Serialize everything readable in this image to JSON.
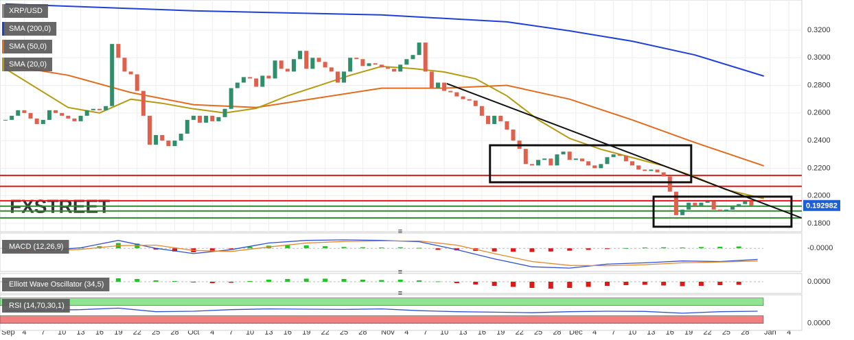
{
  "chart_data": [
    {
      "type": "candlestick",
      "title": "XRP/USD",
      "watermark": "FXSTREET",
      "grid": true,
      "up_color": "#2f8f6b",
      "down_color": "#e0604c",
      "ylim": [
        0.175,
        0.34
      ],
      "yticks": [
        {
          "value": 0.32,
          "label": "0.3200"
        },
        {
          "value": 0.3,
          "label": "0.3000"
        },
        {
          "value": 0.28,
          "label": "0.2800"
        },
        {
          "value": 0.26,
          "label": "0.2600"
        },
        {
          "value": 0.24,
          "label": "0.2400"
        },
        {
          "value": 0.22,
          "label": "0.2200"
        },
        {
          "value": 0.2,
          "label": "0.2000"
        },
        {
          "value": 0.18,
          "label": "0.1800"
        }
      ],
      "xlim": [
        -1,
        127
      ],
      "xticks": [
        {
          "value": 0,
          "label": "Sep"
        },
        {
          "value": 3,
          "label": "4"
        },
        {
          "value": 6,
          "label": "7"
        },
        {
          "value": 9,
          "label": "10"
        },
        {
          "value": 12,
          "label": "13"
        },
        {
          "value": 15,
          "label": "16"
        },
        {
          "value": 18,
          "label": "19"
        },
        {
          "value": 21,
          "label": "22"
        },
        {
          "value": 24,
          "label": "25"
        },
        {
          "value": 27,
          "label": "28"
        },
        {
          "value": 30,
          "label": "Oct"
        },
        {
          "value": 33,
          "label": "4"
        },
        {
          "value": 36,
          "label": "7"
        },
        {
          "value": 39,
          "label": "10"
        },
        {
          "value": 42,
          "label": "13"
        },
        {
          "value": 45,
          "label": "16"
        },
        {
          "value": 48,
          "label": "19"
        },
        {
          "value": 51,
          "label": "22"
        },
        {
          "value": 54,
          "label": "25"
        },
        {
          "value": 57,
          "label": "28"
        },
        {
          "value": 61,
          "label": "Nov"
        },
        {
          "value": 64,
          "label": "4"
        },
        {
          "value": 67,
          "label": "7"
        },
        {
          "value": 70,
          "label": "10"
        },
        {
          "value": 73,
          "label": "13"
        },
        {
          "value": 76,
          "label": "16"
        },
        {
          "value": 79,
          "label": "19"
        },
        {
          "value": 82,
          "label": "22"
        },
        {
          "value": 85,
          "label": "25"
        },
        {
          "value": 88,
          "label": "28"
        },
        {
          "value": 91,
          "label": "Dec"
        },
        {
          "value": 94,
          "label": "4"
        },
        {
          "value": 97,
          "label": "7"
        },
        {
          "value": 100,
          "label": "10"
        },
        {
          "value": 103,
          "label": "13"
        },
        {
          "value": 106,
          "label": "16"
        },
        {
          "value": 109,
          "label": "19"
        },
        {
          "value": 112,
          "label": "22"
        },
        {
          "value": 115,
          "label": "25"
        },
        {
          "value": 118,
          "label": "28"
        },
        {
          "value": 122,
          "label": "Jan"
        },
        {
          "value": 125,
          "label": "4"
        }
      ],
      "values": [
        0.255,
        0.258,
        0.262,
        0.26,
        0.256,
        0.252,
        0.255,
        0.262,
        0.26,
        0.258,
        0.256,
        0.254,
        0.258,
        0.262,
        0.263,
        0.262,
        0.265,
        0.31,
        0.3,
        0.29,
        0.288,
        0.276,
        0.258,
        0.237,
        0.244,
        0.24,
        0.236,
        0.24,
        0.245,
        0.255,
        0.258,
        0.253,
        0.258,
        0.254,
        0.257,
        0.263,
        0.278,
        0.282,
        0.286,
        0.285,
        0.279,
        0.287,
        0.285,
        0.298,
        0.292,
        0.29,
        0.299,
        0.305,
        0.292,
        0.3,
        0.297,
        0.293,
        0.29,
        0.282,
        0.29,
        0.3,
        0.299,
        0.294,
        0.296,
        0.295,
        0.293,
        0.292,
        0.29,
        0.295,
        0.299,
        0.302,
        0.311,
        0.29,
        0.278,
        0.282,
        0.276,
        0.275,
        0.272,
        0.27,
        0.269,
        0.265,
        0.258,
        0.252,
        0.258,
        0.254,
        0.248,
        0.24,
        0.234,
        0.223,
        0.222,
        0.226,
        0.227,
        0.222,
        0.23,
        0.232,
        0.226,
        0.227,
        0.225,
        0.222,
        0.22,
        0.223,
        0.228,
        0.23,
        0.229,
        0.225,
        0.222,
        0.219,
        0.218,
        0.219,
        0.217,
        0.214,
        0.203,
        0.186,
        0.19,
        0.195,
        0.193,
        0.195,
        0.196,
        0.19,
        0.189,
        0.19,
        0.192,
        0.194,
        0.196,
        0.193
      ],
      "last_price": 0.192982,
      "last_price_color": "#1e5fd6",
      "series": [
        {
          "name": "SMA (200,0)",
          "color": "#1f3fd6",
          "x": [
            0,
            30,
            60,
            80,
            90,
            100,
            110,
            121
          ],
          "values": [
            0.339,
            0.334,
            0.331,
            0.326,
            0.3195,
            0.312,
            0.302,
            0.2867
          ]
        },
        {
          "name": "SMA (50,0)",
          "color": "#e36b1c",
          "x": [
            0,
            10,
            20,
            30,
            40,
            50,
            60,
            70,
            80,
            90,
            100,
            110,
            121
          ],
          "values": [
            0.2947,
            0.2873,
            0.2748,
            0.266,
            0.264,
            0.271,
            0.278,
            0.278,
            0.28,
            0.27,
            0.255,
            0.2386,
            0.2217
          ]
        },
        {
          "name": "SMA (20,0)",
          "color": "#b59a10",
          "x": [
            0,
            10,
            15,
            20,
            25,
            30,
            35,
            40,
            45,
            50,
            55,
            60,
            65,
            70,
            75,
            80,
            85,
            90,
            95,
            100,
            105,
            110,
            115,
            121
          ],
          "values": [
            0.292,
            0.264,
            0.26,
            0.27,
            0.267,
            0.263,
            0.26,
            0.2634,
            0.2724,
            0.2798,
            0.2873,
            0.2937,
            0.2922,
            0.2897,
            0.2848,
            0.2724,
            0.255,
            0.2416,
            0.2337,
            0.2277,
            0.2217,
            0.2138,
            0.2044,
            0.198
          ]
        }
      ],
      "hlines": [
        {
          "value": 0.2148,
          "color": "#e01818"
        },
        {
          "value": 0.2069,
          "color": "#e01818"
        },
        {
          "value": 0.1964,
          "color": "#e01818"
        },
        {
          "value": 0.1925,
          "color": "#2f8a2f"
        },
        {
          "value": 0.189,
          "color": "#2f8a2f"
        },
        {
          "value": 0.184,
          "color": "#2f8a2f"
        }
      ],
      "trendlines": [
        {
          "x": [
            70.4,
            127
          ],
          "values": [
            0.2813,
            0.184
          ]
        }
      ],
      "boxes": [
        {
          "x": [
            77.3,
            109.4
          ],
          "values": [
            0.2366,
            0.2098
          ]
        },
        {
          "x": [
            103.4,
            125.4
          ],
          "values": [
            0.1994,
            0.1776
          ]
        }
      ]
    },
    {
      "type": "macd",
      "title": "MACD (12,26,9)",
      "ylim": [
        -0.008,
        0.005
      ],
      "yticks": [
        {
          "value": 0,
          "label": "-0.0000"
        }
      ],
      "x": [
        0,
        3,
        6,
        9,
        12,
        15,
        18,
        21,
        24,
        27,
        30,
        33,
        36,
        39,
        42,
        45,
        48,
        51,
        54,
        57,
        60,
        63,
        66,
        69,
        72,
        75,
        78,
        81,
        84,
        87,
        90,
        93,
        96,
        99,
        102,
        105,
        108,
        111,
        114,
        117
      ],
      "values": [
        0,
        -0.0003,
        -0.0002,
        0.0002,
        0.0003,
        0.0008,
        0.002,
        0.0018,
        -0.0005,
        -0.0012,
        -0.0015,
        -0.001,
        -0.0002,
        0.0006,
        0.001,
        0.0012,
        0.0011,
        0.0008,
        0.0005,
        0.0004,
        0.0003,
        0.0004,
        0.0002,
        -0.0006,
        -0.0008,
        -0.001,
        -0.0012,
        -0.0013,
        -0.0014,
        -0.0012,
        -0.0009,
        -0.0006,
        -0.0003,
        0.0001,
        0.0003,
        0.0004,
        0.0003,
        0.0005,
        0.0006,
        0.0007
      ],
      "up_color": "#22c322",
      "down_color": "#e01818",
      "series": [
        {
          "color": "#2f4fd0",
          "x": [
            0,
            6,
            12,
            18,
            24,
            30,
            36,
            42,
            48,
            54,
            60,
            66,
            72,
            78,
            84,
            90,
            96,
            102,
            108,
            114,
            120
          ],
          "values": [
            -0.001,
            -0.0008,
            0.0002,
            0.003,
            0,
            -0.002,
            -0.0005,
            0.002,
            0.003,
            0.0032,
            0.003,
            0.0025,
            -0.0005,
            -0.004,
            -0.007,
            -0.0075,
            -0.006,
            -0.0055,
            -0.0048,
            -0.005,
            -0.0042
          ]
        },
        {
          "color": "#e8862a",
          "x": [
            0,
            6,
            12,
            18,
            24,
            30,
            36,
            42,
            48,
            54,
            60,
            66,
            72,
            78,
            84,
            90,
            96,
            102,
            108,
            114,
            120
          ],
          "values": [
            -0.0008,
            -0.0009,
            -0.0004,
            0.001,
            0.0012,
            -0.0008,
            -0.0012,
            0.0005,
            0.002,
            0.0026,
            0.0028,
            0.0028,
            0.0012,
            -0.002,
            -0.005,
            -0.0065,
            -0.0066,
            -0.0062,
            -0.0055,
            -0.0052,
            -0.0048
          ]
        }
      ]
    },
    {
      "type": "bar",
      "title": "Elliott Wave Oscillator (34,5)",
      "ylim": [
        -0.03,
        0.02
      ],
      "yticks": [
        {
          "value": 0,
          "label": "0.0000"
        }
      ],
      "up_color": "#22c322",
      "down_color": "#e01818",
      "x": [
        0,
        3,
        6,
        9,
        12,
        15,
        18,
        21,
        24,
        27,
        30,
        33,
        36,
        39,
        42,
        45,
        48,
        51,
        54,
        57,
        60,
        63,
        66,
        69,
        72,
        75,
        78,
        81,
        84,
        87,
        90,
        93,
        96,
        99,
        102,
        105,
        108,
        111,
        114,
        117
      ],
      "values": [
        -0.002,
        -0.003,
        -0.004,
        -0.003,
        -0.002,
        0.003,
        0.01,
        0.008,
        0.004,
        0.002,
        -0.002,
        -0.004,
        -0.003,
        0.002,
        0.006,
        0.008,
        0.009,
        0.009,
        0.008,
        0.006,
        0.005,
        0.006,
        0.004,
        0.001,
        -0.004,
        -0.008,
        -0.012,
        -0.015,
        -0.018,
        -0.02,
        -0.018,
        -0.015,
        -0.012,
        -0.01,
        -0.009,
        -0.011,
        -0.013,
        -0.012,
        -0.01,
        -0.009
      ]
    },
    {
      "type": "line",
      "title": "RSI (14,70,30,1)",
      "ylim": [
        -25,
        110
      ],
      "yticks": [
        {
          "value": 0,
          "label": "0.0000"
        }
      ],
      "zones": [
        {
          "from": 70,
          "to": 100,
          "color": "#8ee68e"
        },
        {
          "from": 0,
          "to": 30,
          "color": "#f08080"
        }
      ],
      "series": [
        {
          "color": "#2f4fd0",
          "x": [
            0,
            6,
            12,
            18,
            24,
            30,
            36,
            42,
            48,
            54,
            60,
            66,
            72,
            78,
            84,
            90,
            96,
            102,
            108,
            114,
            120
          ],
          "values": [
            50,
            52,
            54,
            60,
            46,
            48,
            54,
            57,
            56,
            55,
            57,
            50,
            46,
            44,
            42,
            46,
            48,
            47,
            40,
            46,
            48
          ]
        }
      ]
    }
  ]
}
